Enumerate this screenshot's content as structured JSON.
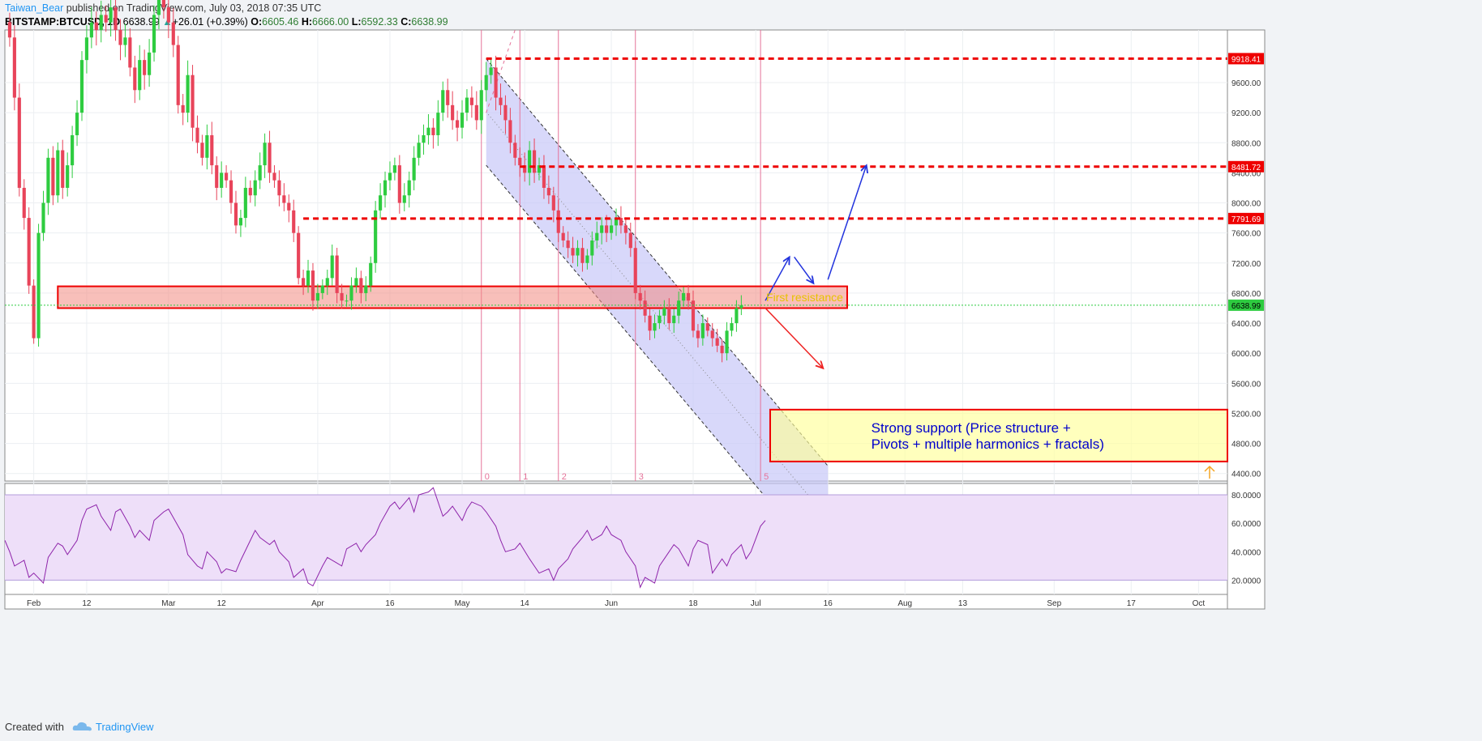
{
  "header": {
    "author": "Taiwan_Bear",
    "published": " published on TradingView.com, July 03, 2018 07:35 UTC",
    "symbol": "BITSTAMP:BTCUSD, 1D",
    "last": "6638.99",
    "change": "+26.01 (+0.39%)",
    "open_label": "O:",
    "open": "6605.46",
    "high_label": "H:",
    "high": "6666.00",
    "low_label": "L:",
    "low": "6592.33",
    "close_label": "C:",
    "close": "6638.99"
  },
  "footer": {
    "created": "Created with",
    "brand": "TradingView"
  },
  "colors": {
    "bull": "#2ecc40",
    "bear": "#e8445a",
    "level": "#ee0000",
    "arrow_up": "#2233dd",
    "arrow_down": "#ee2222",
    "channel": "#c8c8f8",
    "rsi_fill": "#eedff9",
    "rsi_line": "#8e24aa",
    "vline": "#e57399"
  },
  "chart_data": {
    "type": "candlestick",
    "price_axis": {
      "ylim": [
        4300,
        10300
      ],
      "ticks": [
        "9600.00",
        "9200.00",
        "8800.00",
        "8400.00",
        "8000.00",
        "7600.00",
        "7200.00",
        "6800.00",
        "6400.00",
        "6000.00",
        "5600.00",
        "5200.00",
        "4800.00",
        "4400.00"
      ],
      "markers": [
        {
          "label": "9918.41",
          "value": 9918.41,
          "kind": "resistance"
        },
        {
          "label": "8481.72",
          "value": 8481.72,
          "kind": "resistance"
        },
        {
          "label": "7791.69",
          "value": 7791.69,
          "kind": "resistance"
        },
        {
          "label": "6638.99",
          "value": 6638.99,
          "kind": "last-price"
        }
      ]
    },
    "time_axis": {
      "start": "2018-01-26",
      "end": "2018-10-07",
      "ticks": [
        {
          "date": "2018-02-01",
          "label": "Feb"
        },
        {
          "date": "2018-02-12",
          "label": "12"
        },
        {
          "date": "2018-03-01",
          "label": "Mar"
        },
        {
          "date": "2018-03-12",
          "label": "12"
        },
        {
          "date": "2018-04-01",
          "label": "Apr"
        },
        {
          "date": "2018-04-16",
          "label": "16"
        },
        {
          "date": "2018-05-01",
          "label": "May"
        },
        {
          "date": "2018-05-14",
          "label": "14"
        },
        {
          "date": "2018-06-01",
          "label": "Jun"
        },
        {
          "date": "2018-06-18",
          "label": "18"
        },
        {
          "date": "2018-07-01",
          "label": "Jul"
        },
        {
          "date": "2018-07-16",
          "label": "16"
        },
        {
          "date": "2018-08-01",
          "label": "Aug"
        },
        {
          "date": "2018-08-13",
          "label": "13"
        },
        {
          "date": "2018-09-01",
          "label": "Sep"
        },
        {
          "date": "2018-09-17",
          "label": "17"
        },
        {
          "date": "2018-10-01",
          "label": "Oct"
        }
      ]
    },
    "close_series": [
      10200,
      9400,
      8200,
      7800,
      6900,
      6200,
      7600,
      8000,
      8600,
      8100,
      8700,
      8200,
      8500,
      8900,
      9200,
      9900,
      10200,
      10400,
      10300,
      10500,
      10400,
      10600,
      10300,
      10100,
      10200,
      9800,
      9500,
      9900,
      9700,
      10000,
      10500,
      10800,
      10600,
      10400,
      10100,
      9300,
      9200,
      9700,
      9000,
      8800,
      8600,
      8900,
      8500,
      8200,
      8400,
      8300,
      8000,
      7700,
      7800,
      8200,
      8100,
      8300,
      8500,
      8800,
      8400,
      8300,
      8100,
      8000,
      7900,
      7600,
      7000,
      6900,
      7100,
      6700,
      6800,
      6900,
      7000,
      7300,
      6800,
      6700,
      6700,
      6900,
      7000,
      6800,
      6900,
      7200,
      7900,
      8100,
      8300,
      8400,
      8500,
      8000,
      8100,
      8300,
      8600,
      8800,
      8900,
      9000,
      8900,
      9200,
      9500,
      9300,
      9100,
      9000,
      9200,
      9400,
      9300,
      9100,
      9500,
      9700,
      9800,
      9400,
      9300,
      9100,
      8800,
      8600,
      8500,
      8400,
      8700,
      8400,
      8500,
      8200,
      8100,
      7900,
      7600,
      7500,
      7400,
      7300,
      7400,
      7200,
      7300,
      7500,
      7600,
      7700,
      7600,
      7700,
      7800,
      7700,
      7600,
      7400,
      6800,
      6700,
      6500,
      6300,
      6400,
      6500,
      6600,
      6400,
      6500,
      6700,
      6800,
      6700,
      6300,
      6200,
      6400,
      6300,
      6200,
      6100,
      6000,
      6300,
      6400,
      6600,
      6638.99
    ],
    "levels": [
      {
        "value": 9918.41,
        "start": "2018-05-06"
      },
      {
        "value": 8481.72,
        "start": "2018-05-13"
      },
      {
        "value": 7791.69,
        "start": "2018-03-29"
      }
    ],
    "zones": [
      {
        "label": "first-resistance",
        "from": 6600,
        "to": 6890,
        "start": "2018-02-06",
        "end": "2018-07-20"
      },
      {
        "label": "strong-support",
        "from": 4560,
        "to": 5250,
        "start": "2018-07-04",
        "end": "2018-10-07"
      }
    ],
    "channel": {
      "start": "2018-05-06",
      "end": "2018-07-16",
      "upper": [
        9918,
        4500
      ],
      "lower": [
        8500,
        3100
      ]
    },
    "fib_time_lines": [
      {
        "date": "2018-05-05",
        "label": "0"
      },
      {
        "date": "2018-05-13",
        "label": "1"
      },
      {
        "date": "2018-05-21",
        "label": "2"
      },
      {
        "date": "2018-06-06",
        "label": "3"
      },
      {
        "date": "2018-07-02",
        "label": "5"
      }
    ],
    "annotations": [
      {
        "text": "First resistance"
      },
      {
        "line1": "Strong support (Price structure +",
        "line2": "Pivots + multiple harmonics + fractals)"
      }
    ],
    "rsi": {
      "ylim": [
        10,
        88
      ],
      "band": [
        20,
        80
      ],
      "ticks": [
        "80.0000",
        "60.0000",
        "40.0000",
        "20.0000"
      ],
      "values": [
        48,
        40,
        30,
        34,
        22,
        25,
        18,
        36,
        46,
        44,
        38,
        48,
        62,
        70,
        73,
        65,
        55,
        68,
        70,
        58,
        50,
        55,
        48,
        62,
        68,
        70,
        64,
        52,
        38,
        30,
        28,
        40,
        33,
        25,
        28,
        26,
        34,
        48,
        55,
        50,
        45,
        48,
        40,
        33,
        22,
        28,
        18,
        16,
        30,
        36,
        32,
        30,
        42,
        46,
        40,
        45,
        52,
        60,
        72,
        75,
        70,
        78,
        68,
        80,
        82,
        85,
        65,
        68,
        72,
        62,
        70,
        75,
        72,
        68,
        58,
        48,
        40,
        42,
        46,
        35,
        30,
        25,
        28,
        20,
        28,
        35,
        42,
        50,
        55,
        48,
        52,
        58,
        52,
        48,
        40,
        30,
        15,
        22,
        18,
        30,
        40,
        45,
        42,
        30,
        42,
        48,
        45,
        25,
        35,
        30,
        38,
        45,
        35,
        40,
        58,
        62
      ],
      "last_value": 62
    }
  }
}
